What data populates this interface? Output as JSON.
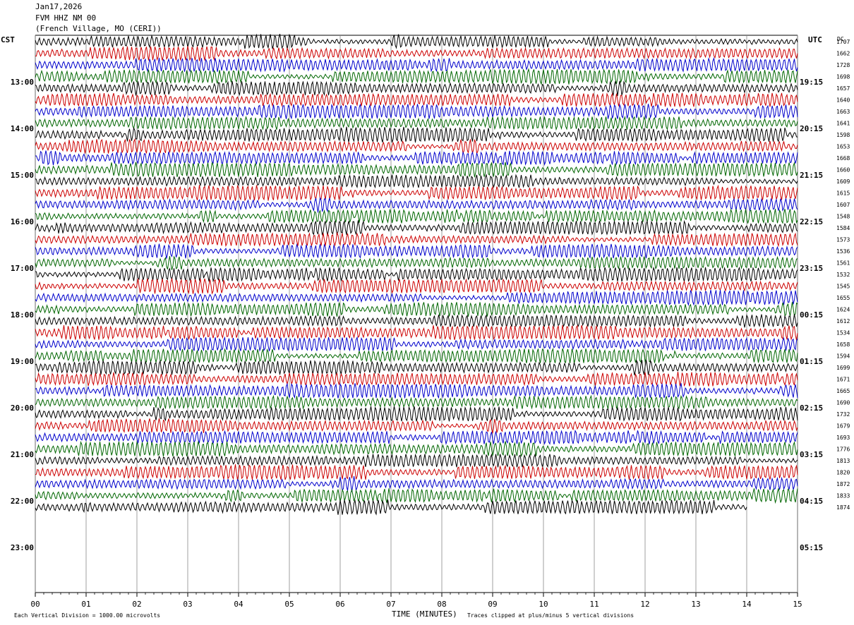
{
  "header": {
    "date": "Jan17,2026",
    "station": "FVM HHZ NM 00",
    "location": "(French Village, MO (CERI))"
  },
  "labels": {
    "left_tz": "CST",
    "right_tz": "UTC",
    "dc": "DC",
    "xlabel": "TIME (MINUTES)",
    "scale_note": "Each Vertical Division = 1000.00 microvolts",
    "clip_note": "Traces clipped at plus/minus 5 vertical divisions"
  },
  "chart_data": {
    "type": "line",
    "title": "Jan17,2026 FVM HHZ NM 00 (French Village, MO (CERI))",
    "xlabel": "TIME (MINUTES)",
    "xlim": [
      0,
      15
    ],
    "x_ticks": [
      "00",
      "01",
      "02",
      "03",
      "04",
      "05",
      "06",
      "07",
      "08",
      "09",
      "10",
      "11",
      "12",
      "13",
      "14",
      "15"
    ],
    "cst_hour_labels": [
      "13:00",
      "14:00",
      "15:00",
      "16:00",
      "17:00",
      "18:00",
      "19:00",
      "20:00",
      "21:00",
      "22:00",
      "23:00"
    ],
    "utc_hour_labels": [
      "19:15",
      "20:15",
      "21:15",
      "22:15",
      "23:15",
      "00:15",
      "01:15",
      "02:15",
      "03:15",
      "04:15",
      "05:15"
    ],
    "trace_colors": [
      "#000000",
      "#cc0000",
      "#0000cc",
      "#006600"
    ],
    "trace_count": 41,
    "trace_minutes_per_line": 15,
    "dc_offsets": [
      1707,
      1662,
      1728,
      1698,
      1657,
      1640,
      1663,
      1641,
      1598,
      1653,
      1668,
      1660,
      1609,
      1615,
      1607,
      1548,
      1584,
      1573,
      1536,
      1561,
      1532,
      1545,
      1655,
      1624,
      1612,
      1534,
      1658,
      1594,
      1699,
      1671,
      1665,
      1690,
      1732,
      1679,
      1693,
      1776,
      1813,
      1820,
      1872,
      1833,
      1874
    ],
    "grid": "vertical lines each minute"
  }
}
